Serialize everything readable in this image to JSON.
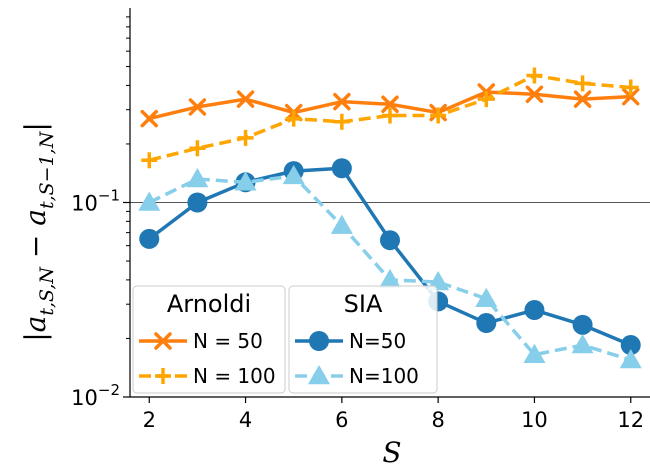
{
  "chart_data": {
    "type": "line",
    "xlabel": "S",
    "ylabel": "|a_{t,S,N} − a_{t,S−1,N}|",
    "yscale": "log",
    "xlim": [
      1.6,
      12.4
    ],
    "ylim": [
      0.01,
      1.0
    ],
    "xticks": [
      2,
      4,
      6,
      8,
      10,
      12
    ],
    "xtick_labels": [
      "2",
      "4",
      "6",
      "8",
      "10",
      "12"
    ],
    "ytick_labels": [
      {
        "mantissa": "10",
        "exp": "−1",
        "value": 0.1
      },
      {
        "mantissa": "10",
        "exp": "−2",
        "value": 0.01
      }
    ],
    "hline": 0.1,
    "series": [
      {
        "name": "N = 50",
        "group": "Arnoldi",
        "color": "#ff7f0e",
        "dash": "solid",
        "marker": "x",
        "x": [
          2,
          3,
          4,
          5,
          6,
          7,
          8,
          9,
          10,
          11,
          12
        ],
        "y": [
          0.27,
          0.31,
          0.34,
          0.29,
          0.33,
          0.32,
          0.29,
          0.37,
          0.36,
          0.34,
          0.35
        ]
      },
      {
        "name": "N = 100",
        "group": "Arnoldi",
        "color": "#ffa500",
        "dash": "dashed",
        "marker": "plus",
        "x": [
          2,
          3,
          4,
          5,
          6,
          7,
          8,
          9,
          10,
          11,
          12
        ],
        "y": [
          0.165,
          0.19,
          0.215,
          0.27,
          0.26,
          0.28,
          0.28,
          0.34,
          0.45,
          0.41,
          0.39
        ]
      },
      {
        "name": "N=50",
        "group": "SIA",
        "color": "#1f77b4",
        "dash": "solid",
        "marker": "circle",
        "x": [
          2,
          3,
          4,
          5,
          6,
          7,
          8,
          9,
          10,
          11,
          12
        ],
        "y": [
          0.065,
          0.1,
          0.127,
          0.145,
          0.15,
          0.064,
          0.031,
          0.024,
          0.028,
          0.0235,
          0.0185
        ]
      },
      {
        "name": "N=100",
        "group": "SIA",
        "color": "#87ceeb",
        "dash": "dashed",
        "marker": "triangle",
        "x": [
          2,
          3,
          4,
          5,
          6,
          7,
          8,
          9,
          10,
          11,
          12
        ],
        "y": [
          0.1,
          0.132,
          0.127,
          0.137,
          0.076,
          0.04,
          0.039,
          0.032,
          0.0165,
          0.0185,
          0.0155
        ]
      }
    ],
    "legends": [
      {
        "title": "Arnoldi",
        "entries": [
          "N = 50",
          "N = 100"
        ],
        "placement": "lower-left"
      },
      {
        "title": "SIA",
        "entries": [
          "N=50",
          "N=100"
        ],
        "placement": "lower-left"
      }
    ]
  }
}
